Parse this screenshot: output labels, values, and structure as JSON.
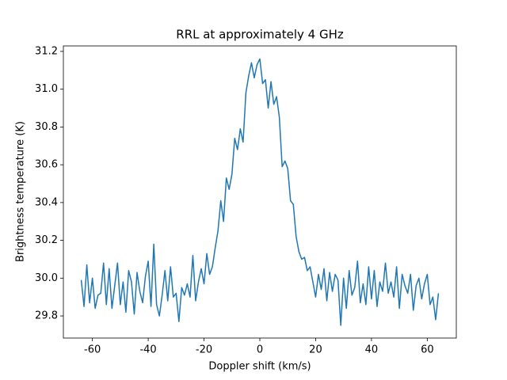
{
  "chart_data": {
    "type": "line",
    "title": "RRL at approximately 4 GHz",
    "xlabel": "Doppler shift (km/s)",
    "ylabel": "Brightness temperature (K)",
    "color": "#1f77b4",
    "grid": false,
    "x": [
      -64,
      -63,
      -62,
      -61,
      -60,
      -59,
      -58,
      -57,
      -56,
      -55,
      -54,
      -53,
      -52,
      -51,
      -50,
      -49,
      -48,
      -47,
      -46,
      -45,
      -44,
      -43,
      -42,
      -41,
      -40,
      -39,
      -38,
      -37,
      -36,
      -35,
      -34,
      -33,
      -32,
      -31,
      -30,
      -29,
      -28,
      -27,
      -26,
      -25,
      -24,
      -23,
      -22,
      -21,
      -20,
      -19,
      -18,
      -17,
      -16,
      -15,
      -14,
      -13,
      -12,
      -11,
      -10,
      -9,
      -8,
      -7,
      -6,
      -5,
      -4,
      -3,
      -2,
      -1,
      0,
      1,
      2,
      3,
      4,
      5,
      6,
      7,
      8,
      9,
      10,
      11,
      12,
      13,
      14,
      15,
      16,
      17,
      18,
      19,
      20,
      21,
      22,
      23,
      24,
      25,
      26,
      27,
      28,
      29,
      30,
      31,
      32,
      33,
      34,
      35,
      36,
      37,
      38,
      39,
      40,
      41,
      42,
      43,
      44,
      45,
      46,
      47,
      48,
      49,
      50,
      51,
      52,
      53,
      54,
      55,
      56,
      57,
      58,
      59,
      60,
      61,
      62,
      63,
      64
    ],
    "values": [
      29.99,
      29.85,
      30.07,
      29.87,
      30.0,
      29.84,
      29.91,
      29.92,
      30.08,
      29.86,
      30.05,
      29.84,
      29.96,
      30.08,
      29.86,
      29.98,
      29.82,
      30.04,
      29.98,
      29.81,
      30.03,
      29.93,
      29.87,
      30.01,
      30.09,
      29.85,
      30.18,
      29.86,
      29.8,
      29.91,
      30.04,
      29.88,
      30.06,
      29.9,
      29.92,
      29.77,
      29.95,
      29.91,
      29.97,
      29.9,
      30.12,
      29.88,
      29.98,
      30.05,
      29.97,
      30.13,
      30.02,
      30.06,
      30.16,
      30.25,
      30.41,
      30.3,
      30.53,
      30.47,
      30.55,
      30.74,
      30.68,
      30.79,
      30.72,
      30.98,
      31.07,
      31.14,
      31.06,
      31.13,
      31.16,
      31.03,
      31.05,
      30.9,
      31.04,
      30.92,
      30.96,
      30.85,
      30.59,
      30.62,
      30.58,
      30.41,
      30.39,
      30.22,
      30.14,
      30.1,
      30.11,
      30.04,
      30.06,
      29.98,
      29.9,
      30.02,
      29.94,
      30.05,
      29.88,
      30.03,
      29.93,
      30.02,
      29.99,
      29.75,
      30.0,
      29.84,
      30.04,
      29.91,
      29.95,
      30.09,
      29.87,
      29.97,
      29.86,
      30.06,
      29.89,
      30.04,
      29.85,
      29.98,
      29.93,
      30.08,
      29.92,
      29.98,
      29.9,
      30.06,
      29.84,
      30.02,
      29.96,
      29.92,
      30.02,
      29.83,
      29.96,
      30.0,
      29.89,
      29.97,
      30.02,
      29.86,
      29.9,
      29.78,
      29.92
    ],
    "xlim": [
      -70.4,
      70.4
    ],
    "ylim": [
      29.683,
      31.229
    ],
    "xticks": [
      -60,
      -40,
      -20,
      0,
      20,
      40,
      60
    ],
    "yticks": [
      29.8,
      {
        "value": 30.0,
        "label": "30.0"
      },
      30.2,
      30.4,
      30.6,
      30.8,
      {
        "value": 31.0,
        "label": "31.0"
      },
      31.2
    ]
  }
}
